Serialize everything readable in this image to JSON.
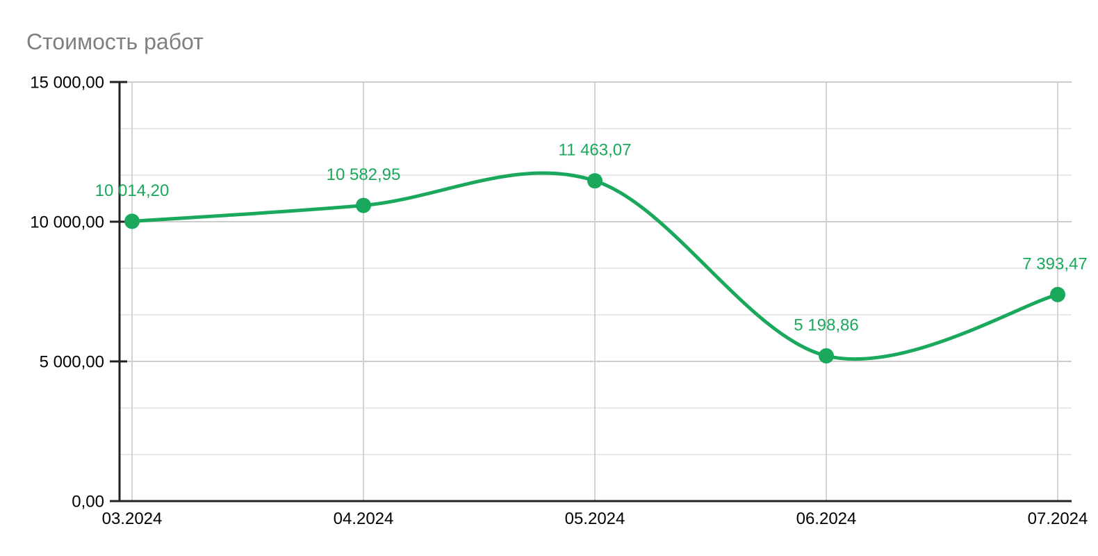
{
  "chart_data": {
    "type": "line",
    "title": "Стоимость работ",
    "categories": [
      "03.2024",
      "04.2024",
      "05.2024",
      "06.2024",
      "07.2024"
    ],
    "values": [
      10014.2,
      10582.95,
      11463.07,
      5198.86,
      7393.47
    ],
    "point_labels": [
      "10 014,20",
      "10 582,95",
      "11 463,07",
      "5 198,86",
      "7 393,47"
    ],
    "series": [
      {
        "name": "Стоимость работ",
        "values": [
          10014.2,
          10582.95,
          11463.07,
          5198.86,
          7393.47
        ]
      }
    ],
    "xlabel": "",
    "ylabel": "",
    "ylim": [
      0,
      15000
    ],
    "y_ticks": [
      {
        "value": 0,
        "label": "0,00"
      },
      {
        "value": 5000,
        "label": "5 000,00"
      },
      {
        "value": 10000,
        "label": "10 000,00"
      },
      {
        "value": 15000,
        "label": "15 000,00"
      }
    ],
    "minor_gridline_divisions": 3,
    "grid": "major-horizontal, minor-horizontal, vertical-at-categories",
    "legend": "none",
    "curve": "smooth",
    "point_labels_position": "above",
    "colors": {
      "series": "#1aa85c",
      "point_label": "#1aa85c",
      "major_gridline": "#cccccc",
      "minor_gridline": "#e7e7e7",
      "vertical_gridline": "#d2d2d2",
      "axis_line": "#212121",
      "tick_label": "#000000",
      "title": "#7f7f7f",
      "background": "#ffffff"
    }
  }
}
